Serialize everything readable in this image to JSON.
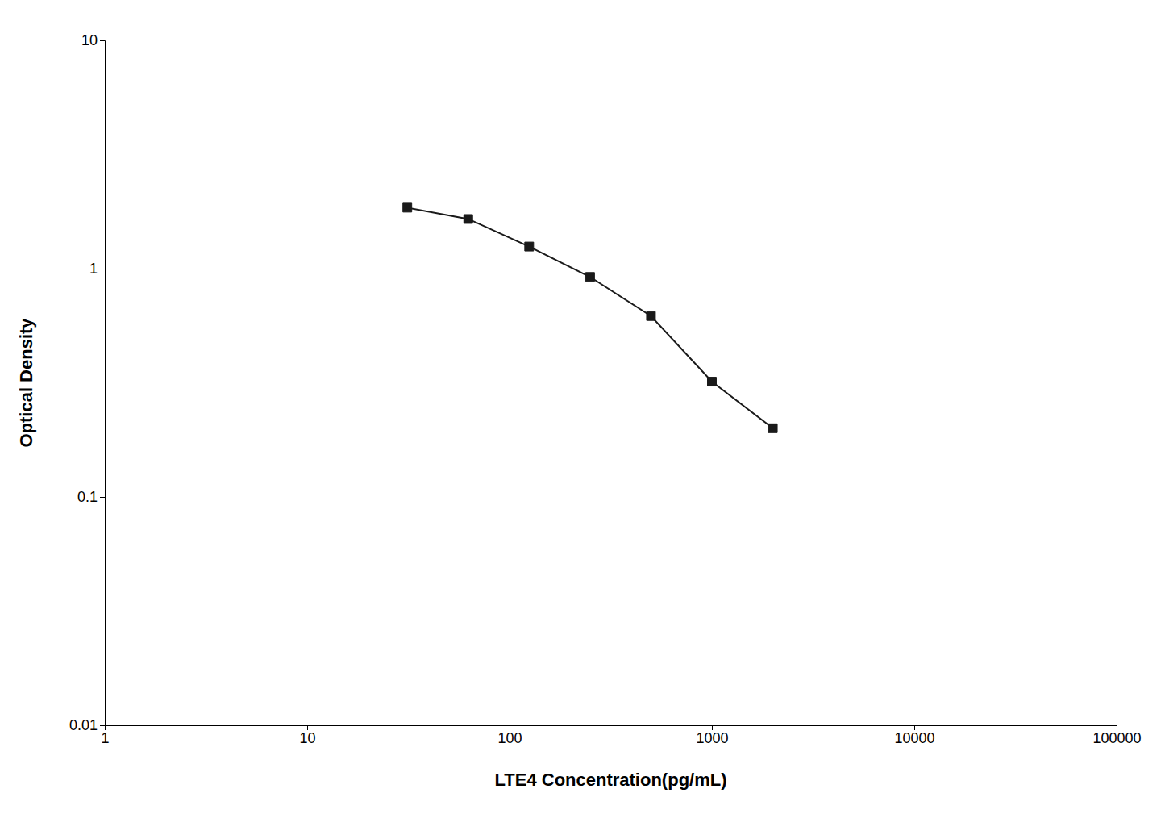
{
  "chart_data": {
    "type": "line",
    "xlabel": "LTE4 Concentration(pg/mL)",
    "ylabel": "Optical Density",
    "x": [
      31.25,
      62.5,
      125,
      250,
      500,
      1000,
      2000
    ],
    "values": [
      1.85,
      1.65,
      1.25,
      0.92,
      0.62,
      0.32,
      0.2
    ],
    "color": "#1a1a1a",
    "marker": "square",
    "log": true,
    "xlim": [
      1,
      100000
    ],
    "ylim": [
      0.01,
      10
    ],
    "xticks": [
      1,
      10,
      100,
      1000,
      10000,
      100000
    ],
    "yticks": [
      0.01,
      0.1,
      1,
      10
    ],
    "grid": false
  }
}
